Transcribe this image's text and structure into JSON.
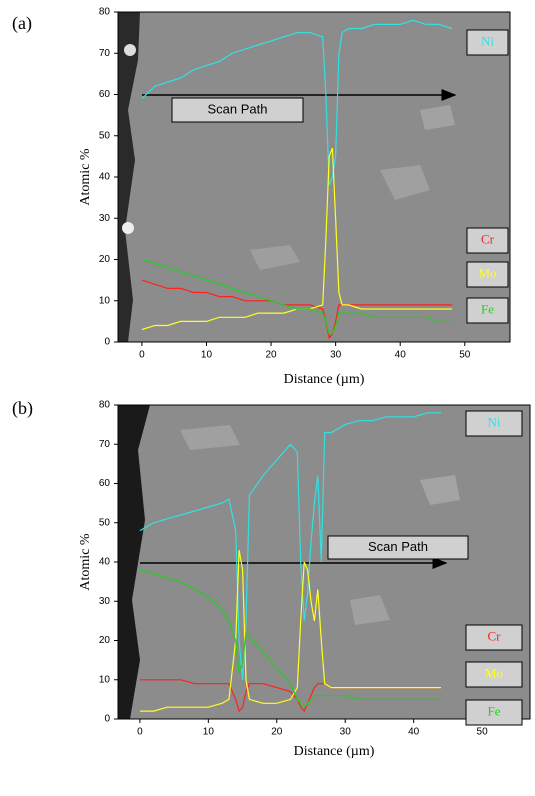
{
  "chart_data": [
    {
      "type": "line",
      "label": "(a)",
      "x_label": "Distance (µm)",
      "y_label": "Atomic %",
      "annotation": "Scan Path",
      "x": [
        0,
        2,
        4,
        6,
        8,
        10,
        12,
        14,
        16,
        18,
        20,
        22,
        24,
        26,
        28,
        28.5,
        29,
        29.5,
        30,
        30.5,
        31,
        32,
        34,
        36,
        38,
        40,
        42,
        44,
        46,
        48
      ],
      "series": [
        {
          "name": "Ni",
          "color": "#33e0e0",
          "values": [
            59,
            62,
            63,
            64,
            66,
            67,
            68,
            70,
            71,
            72,
            73,
            74,
            75,
            75,
            74,
            60,
            38,
            40,
            45,
            70,
            75,
            76,
            76,
            77,
            77,
            77,
            78,
            77,
            77,
            76
          ]
        },
        {
          "name": "Cr",
          "color": "#ff2020",
          "values": [
            15,
            14,
            13,
            13,
            12,
            12,
            11,
            11,
            10,
            10,
            10,
            9,
            9,
            9,
            8,
            5,
            1,
            2,
            5,
            9,
            9,
            9,
            9,
            9,
            9,
            9,
            9,
            9,
            9,
            9
          ]
        },
        {
          "name": "Mo",
          "color": "#ffff20",
          "values": [
            3,
            4,
            4,
            5,
            5,
            5,
            6,
            6,
            6,
            7,
            7,
            7,
            8,
            8,
            9,
            25,
            45,
            47,
            30,
            12,
            9,
            9,
            8,
            8,
            8,
            8,
            8,
            8,
            8,
            8
          ]
        },
        {
          "name": "Fe",
          "color": "#20d020",
          "values": [
            20,
            19,
            18,
            17,
            16,
            15,
            14,
            13,
            12,
            11,
            10,
            9,
            8,
            8,
            7,
            5,
            2,
            2,
            4,
            7,
            7,
            7,
            7,
            6,
            6,
            6,
            6,
            6,
            5,
            5
          ]
        }
      ],
      "xlim": [
        -3.7,
        57
      ],
      "ylim": [
        0,
        80
      ],
      "xticks": [
        0,
        10,
        20,
        30,
        40,
        50
      ],
      "yticks": [
        0,
        10,
        20,
        30,
        40,
        50,
        60,
        70,
        80
      ]
    },
    {
      "type": "line",
      "label": "(b)",
      "x_label": "Distance (µm)",
      "y_label": "Atomic %",
      "annotation": "Scan Path",
      "x": [
        0,
        2,
        4,
        6,
        8,
        10,
        12,
        13,
        14,
        14.5,
        15,
        15.5,
        16,
        18,
        20,
        22,
        23,
        23.5,
        24,
        24.5,
        25,
        25.5,
        26,
        26.5,
        27,
        28,
        30,
        32,
        34,
        36,
        38,
        40,
        42,
        44
      ],
      "series": [
        {
          "name": "Ni",
          "color": "#33e0e0",
          "values": [
            48,
            50,
            51,
            52,
            53,
            54,
            55,
            56,
            48,
            20,
            10,
            25,
            57,
            62,
            66,
            70,
            68,
            40,
            25,
            32,
            45,
            55,
            62,
            40,
            73,
            73,
            75,
            76,
            76,
            77,
            77,
            77,
            78,
            78
          ]
        },
        {
          "name": "Cr",
          "color": "#ff2020",
          "values": [
            10,
            10,
            10,
            10,
            9,
            9,
            9,
            9,
            5,
            2,
            3,
            7,
            9,
            9,
            8,
            7,
            5,
            3,
            2,
            4,
            6,
            8,
            9,
            9,
            9,
            8,
            8,
            8,
            8,
            8,
            8,
            8,
            8,
            8
          ]
        },
        {
          "name": "Mo",
          "color": "#ffff20",
          "values": [
            2,
            2,
            3,
            3,
            3,
            3,
            4,
            5,
            20,
            43,
            38,
            10,
            5,
            4,
            4,
            5,
            8,
            25,
            40,
            38,
            30,
            25,
            33,
            20,
            9,
            8,
            8,
            8,
            8,
            8,
            8,
            8,
            8,
            8
          ]
        },
        {
          "name": "Fe",
          "color": "#20d020",
          "values": [
            38,
            37,
            36,
            35,
            33,
            31,
            28,
            25,
            20,
            12,
            14,
            22,
            21,
            17,
            13,
            9,
            5,
            4,
            3,
            4,
            5,
            6,
            6,
            6,
            6,
            6,
            6,
            5,
            5,
            5,
            5,
            5,
            5,
            5
          ]
        }
      ],
      "xlim": [
        -3.2,
        57
      ],
      "ylim": [
        0,
        80
      ],
      "xticks": [
        0,
        10,
        20,
        30,
        40,
        50
      ],
      "yticks": [
        0,
        10,
        20,
        30,
        40,
        50,
        60,
        70,
        80
      ]
    }
  ]
}
